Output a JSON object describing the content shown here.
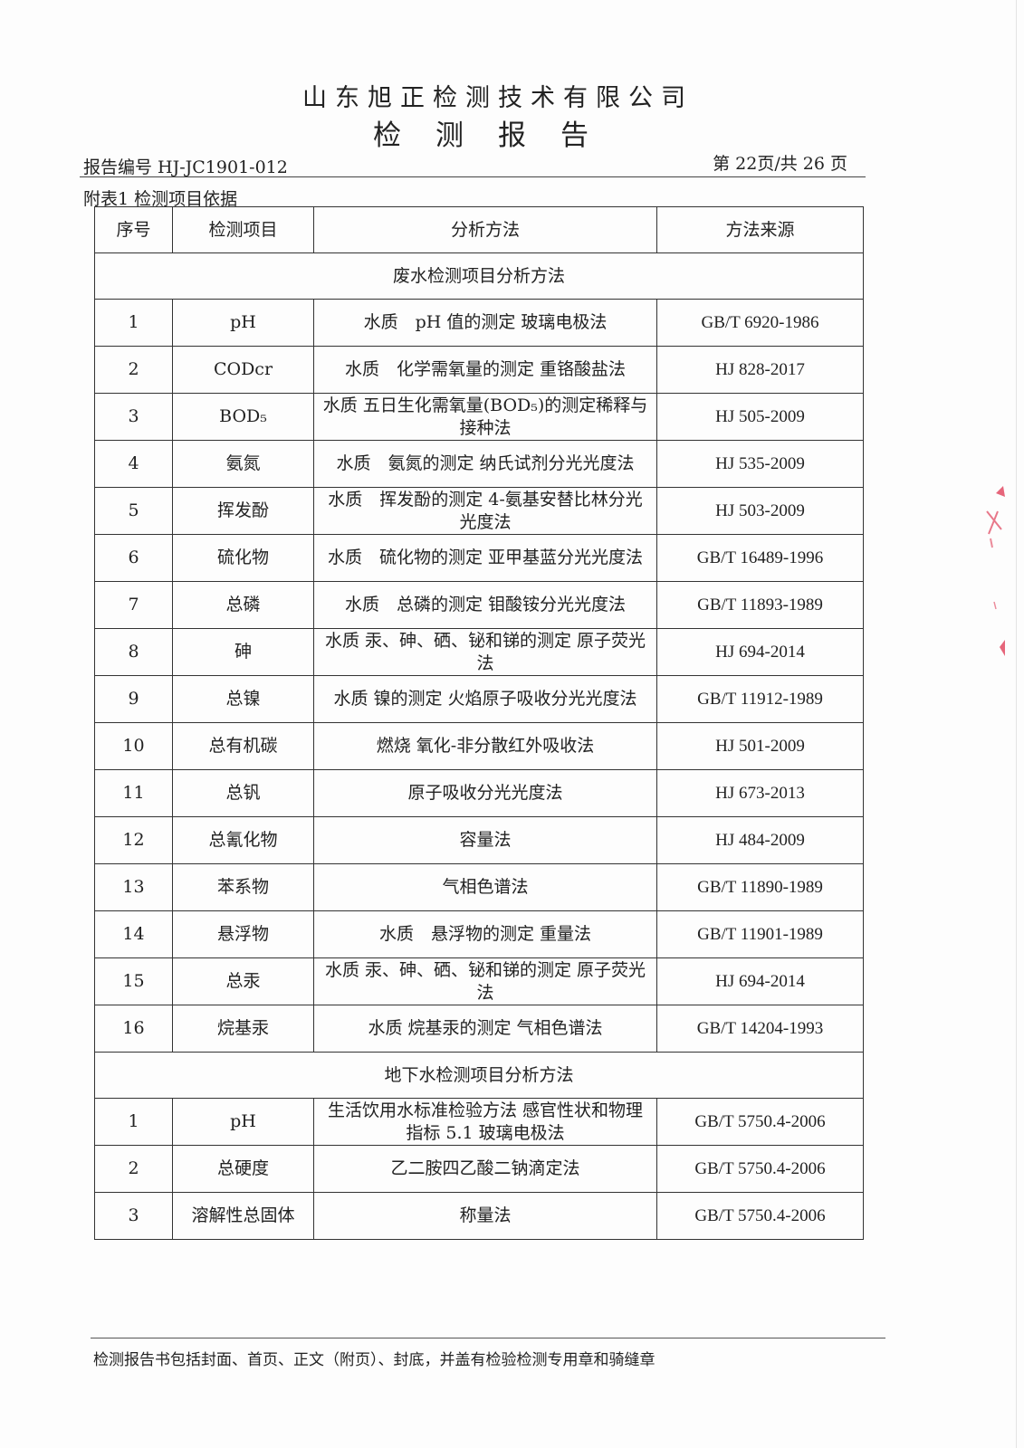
{
  "header": {
    "company": "山东旭正检测技术有限公司",
    "title": "检测报告",
    "report_no": "报告编号 HJ-JC1901-012",
    "page_no": "第 22页/共 26 页"
  },
  "caption": "附表1 检测项目依据",
  "table": {
    "columns": [
      "序号",
      "检测项目",
      "分析方法",
      "方法来源"
    ],
    "sections": [
      {
        "title": "废水检测项目分析方法",
        "rows": [
          [
            "1",
            "pH",
            "水质　pH 值的测定 玻璃电极法",
            "GB/T 6920-1986"
          ],
          [
            "2",
            "CODcr",
            "水质　化学需氧量的测定 重铬酸盐法",
            "HJ 828-2017"
          ],
          [
            "3",
            "BOD₅",
            "水质 五日生化需氧量(BOD₅)的测定稀释与接种法",
            "HJ 505-2009"
          ],
          [
            "4",
            "氨氮",
            "水质　氨氮的测定 纳氏试剂分光光度法",
            "HJ 535-2009"
          ],
          [
            "5",
            "挥发酚",
            "水质　挥发酚的测定 4-氨基安替比林分光光度法",
            "HJ 503-2009"
          ],
          [
            "6",
            "硫化物",
            "水质　硫化物的测定 亚甲基蓝分光光度法",
            "GB/T 16489-1996"
          ],
          [
            "7",
            "总磷",
            "水质　总磷的测定 钼酸铵分光光度法",
            "GB/T 11893-1989"
          ],
          [
            "8",
            "砷",
            "水质 汞、砷、硒、铋和锑的测定 原子荧光法",
            "HJ 694-2014"
          ],
          [
            "9",
            "总镍",
            "水质 镍的测定 火焰原子吸收分光光度法",
            "GB/T 11912-1989"
          ],
          [
            "10",
            "总有机碳",
            "燃烧 氧化-非分散红外吸收法",
            "HJ 501-2009"
          ],
          [
            "11",
            "总钒",
            "原子吸收分光光度法",
            "HJ 673-2013"
          ],
          [
            "12",
            "总氰化物",
            "容量法",
            "HJ 484-2009"
          ],
          [
            "13",
            "苯系物",
            "气相色谱法",
            "GB/T 11890-1989"
          ],
          [
            "14",
            "悬浮物",
            "水质　悬浮物的测定 重量法",
            "GB/T 11901-1989"
          ],
          [
            "15",
            "总汞",
            "水质 汞、砷、硒、铋和锑的测定 原子荧光法",
            "HJ 694-2014"
          ],
          [
            "16",
            "烷基汞",
            "水质 烷基汞的测定 气相色谱法",
            "GB/T 14204-1993"
          ]
        ]
      },
      {
        "title": "地下水检测项目分析方法",
        "rows": [
          [
            "1",
            "pH",
            "生活饮用水标准检验方法 感官性状和物理指标 5.1 玻璃电极法",
            "GB/T 5750.4-2006"
          ],
          [
            "2",
            "总硬度",
            "乙二胺四乙酸二钠滴定法",
            "GB/T 5750.4-2006"
          ],
          [
            "3",
            "溶解性总固体",
            "称量法",
            "GB/T 5750.4-2006"
          ]
        ]
      }
    ]
  },
  "footer": "检测报告书包括封面、首页、正文（附页）、封底，并盖有检验检测专用章和骑缝章",
  "colors": {
    "text": "#222222",
    "seal": "#e0405a"
  }
}
